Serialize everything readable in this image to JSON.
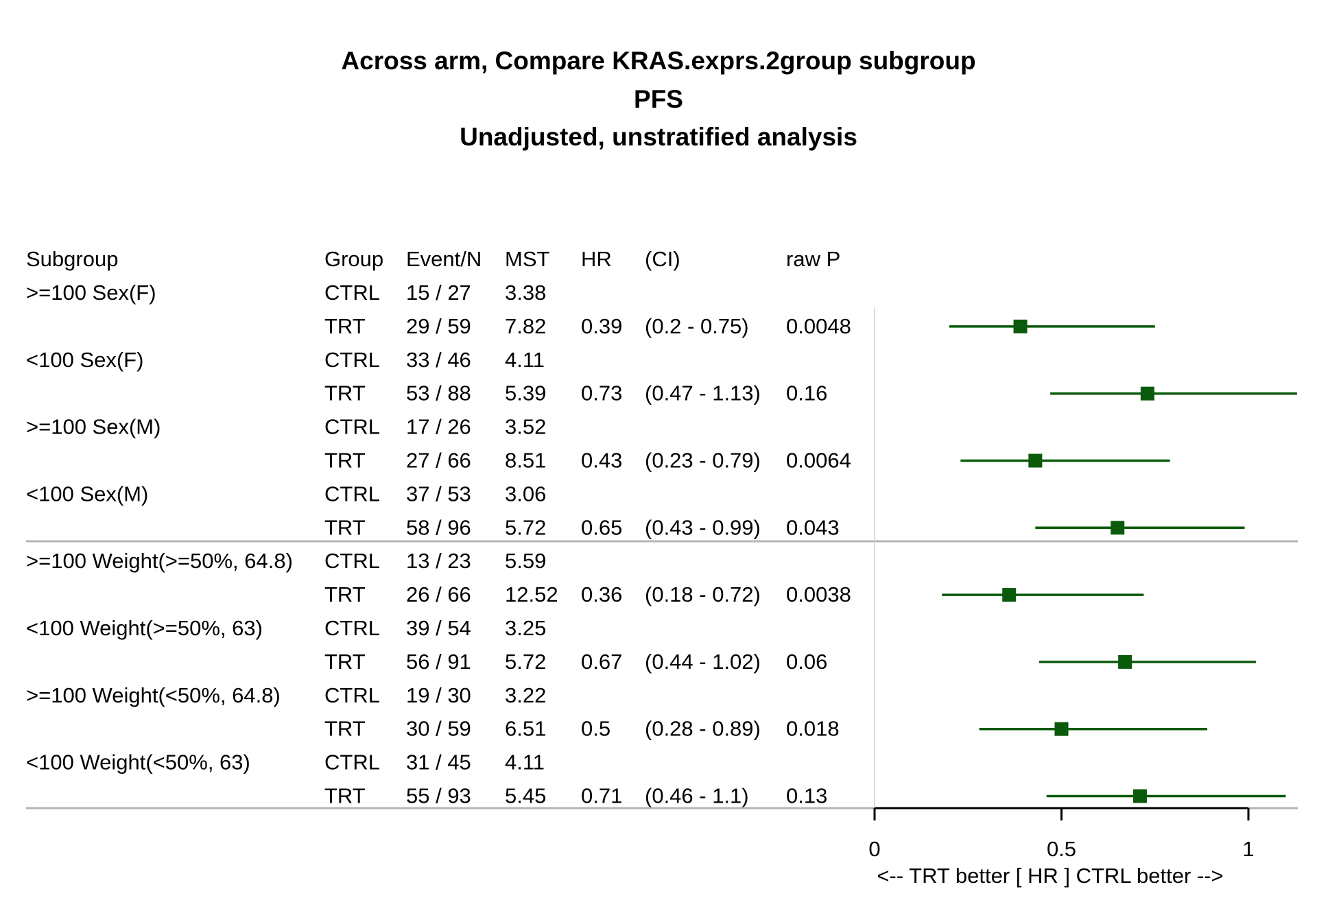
{
  "titles": {
    "line1": "Across arm, Compare KRAS.exprs.2group subgroup",
    "line2": "PFS",
    "line3": "Unadjusted, unstratified analysis"
  },
  "table": {
    "columns": [
      "Subgroup",
      "Group",
      "Event/N",
      "MST",
      "HR",
      "(CI)",
      "raw P"
    ],
    "rows": [
      {
        "subgroup": ">=100 Sex(F)",
        "group": "CTRL",
        "eventn": "15 / 27",
        "mst": "3.38",
        "hr": "",
        "ci": "",
        "p": ""
      },
      {
        "subgroup": "",
        "group": "TRT",
        "eventn": "29 / 59",
        "mst": "7.82",
        "hr": "0.39",
        "ci": "(0.2 - 0.75)",
        "p": "0.0048"
      },
      {
        "subgroup": "<100 Sex(F)",
        "group": "CTRL",
        "eventn": "33 / 46",
        "mst": "4.11",
        "hr": "",
        "ci": "",
        "p": ""
      },
      {
        "subgroup": "",
        "group": "TRT",
        "eventn": "53 / 88",
        "mst": "5.39",
        "hr": "0.73",
        "ci": "(0.47 - 1.13)",
        "p": "0.16"
      },
      {
        "subgroup": ">=100 Sex(M)",
        "group": "CTRL",
        "eventn": "17 / 26",
        "mst": "3.52",
        "hr": "",
        "ci": "",
        "p": ""
      },
      {
        "subgroup": "",
        "group": "TRT",
        "eventn": "27 / 66",
        "mst": "8.51",
        "hr": "0.43",
        "ci": "(0.23 - 0.79)",
        "p": "0.0064"
      },
      {
        "subgroup": "<100 Sex(M)",
        "group": "CTRL",
        "eventn": "37 / 53",
        "mst": "3.06",
        "hr": "",
        "ci": "",
        "p": ""
      },
      {
        "subgroup": "",
        "group": "TRT",
        "eventn": "58 / 96",
        "mst": "5.72",
        "hr": "0.65",
        "ci": "(0.43 - 0.99)",
        "p": "0.043"
      },
      {
        "subgroup": ">=100 Weight(>=50%, 64.8)",
        "group": "CTRL",
        "eventn": "13 / 23",
        "mst": "5.59",
        "hr": "",
        "ci": "",
        "p": ""
      },
      {
        "subgroup": "",
        "group": "TRT",
        "eventn": "26 / 66",
        "mst": "12.52",
        "hr": "0.36",
        "ci": "(0.18 - 0.72)",
        "p": "0.0038"
      },
      {
        "subgroup": "<100 Weight(>=50%, 63)",
        "group": "CTRL",
        "eventn": "39 / 54",
        "mst": "3.25",
        "hr": "",
        "ci": "",
        "p": ""
      },
      {
        "subgroup": "",
        "group": "TRT",
        "eventn": "56 / 91",
        "mst": "5.72",
        "hr": "0.67",
        "ci": "(0.44 - 1.02)",
        "p": "0.06"
      },
      {
        "subgroup": ">=100 Weight(<50%, 64.8)",
        "group": "CTRL",
        "eventn": "19 / 30",
        "mst": "3.22",
        "hr": "",
        "ci": "",
        "p": ""
      },
      {
        "subgroup": "",
        "group": "TRT",
        "eventn": "30 / 59",
        "mst": "6.51",
        "hr": "0.5",
        "ci": "(0.28 - 0.89)",
        "p": "0.018"
      },
      {
        "subgroup": "<100 Weight(<50%, 63)",
        "group": "CTRL",
        "eventn": "31 / 45",
        "mst": "4.11",
        "hr": "",
        "ci": "",
        "p": ""
      },
      {
        "subgroup": "",
        "group": "TRT",
        "eventn": "55 / 93",
        "mst": "5.45",
        "hr": "0.71",
        "ci": "(0.46 - 1.1)",
        "p": "0.13"
      }
    ]
  },
  "chart_data": {
    "type": "scatter",
    "subtype": "forest",
    "xlim": [
      0,
      1.13
    ],
    "xticks": [
      0,
      0.5,
      1
    ],
    "xtick_labels": [
      "0",
      "0.5",
      "1"
    ],
    "xlabel": "<--  TRT better [ HR ]  CTRL better -->",
    "marker_color": "#0b5a0b",
    "points": [
      {
        "row": 1,
        "hr": 0.39,
        "lo": 0.2,
        "hi": 0.75
      },
      {
        "row": 3,
        "hr": 0.73,
        "lo": 0.47,
        "hi": 1.13
      },
      {
        "row": 5,
        "hr": 0.43,
        "lo": 0.23,
        "hi": 0.79
      },
      {
        "row": 7,
        "hr": 0.65,
        "lo": 0.43,
        "hi": 0.99
      },
      {
        "row": 9,
        "hr": 0.36,
        "lo": 0.18,
        "hi": 0.72
      },
      {
        "row": 11,
        "hr": 0.67,
        "lo": 0.44,
        "hi": 1.02
      },
      {
        "row": 13,
        "hr": 0.5,
        "lo": 0.28,
        "hi": 0.89
      },
      {
        "row": 15,
        "hr": 0.71,
        "lo": 0.46,
        "hi": 1.1
      }
    ]
  }
}
